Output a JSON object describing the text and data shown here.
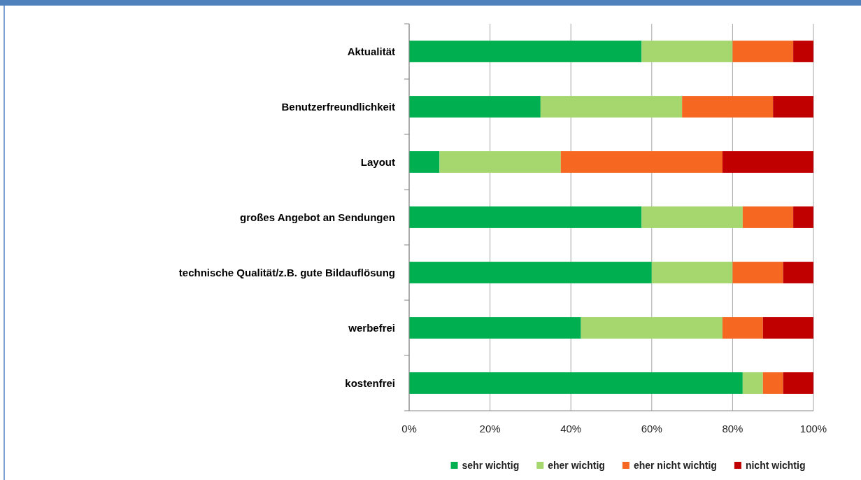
{
  "chart_data": {
    "type": "bar",
    "orientation": "horizontal",
    "stacked": true,
    "categories": [
      "Aktualität",
      "Benutzerfreundlichkeit",
      "Layout",
      "großes Angebot an Sendungen",
      "technische Qualität/z.B. gute Bildauflösung",
      "werbefrei",
      "kostenfrei"
    ],
    "series": [
      {
        "name": "sehr wichtig",
        "color": "#00b050",
        "values": [
          57.5,
          32.5,
          7.5,
          57.5,
          60,
          42.5,
          82.5
        ]
      },
      {
        "name": "eher wichtig",
        "color": "#a5d76e",
        "values": [
          22.5,
          35,
          30,
          25,
          20,
          35,
          5
        ]
      },
      {
        "name": "eher nicht wichtig",
        "color": "#f66722",
        "values": [
          15,
          22.5,
          40,
          12.5,
          12.5,
          10,
          5
        ]
      },
      {
        "name": "nicht wichtig",
        "color": "#c00000",
        "values": [
          5,
          10,
          22.5,
          5,
          7.5,
          12.5,
          7.5
        ]
      }
    ],
    "xlim": [
      0,
      100
    ],
    "xticks": [
      {
        "value": 0,
        "label": "0%"
      },
      {
        "value": 20,
        "label": "20%"
      },
      {
        "value": 40,
        "label": "40%"
      },
      {
        "value": 60,
        "label": "60%"
      },
      {
        "value": 80,
        "label": "80%"
      },
      {
        "value": 100,
        "label": "100%"
      }
    ],
    "grid": "x",
    "legend": "bottom"
  }
}
